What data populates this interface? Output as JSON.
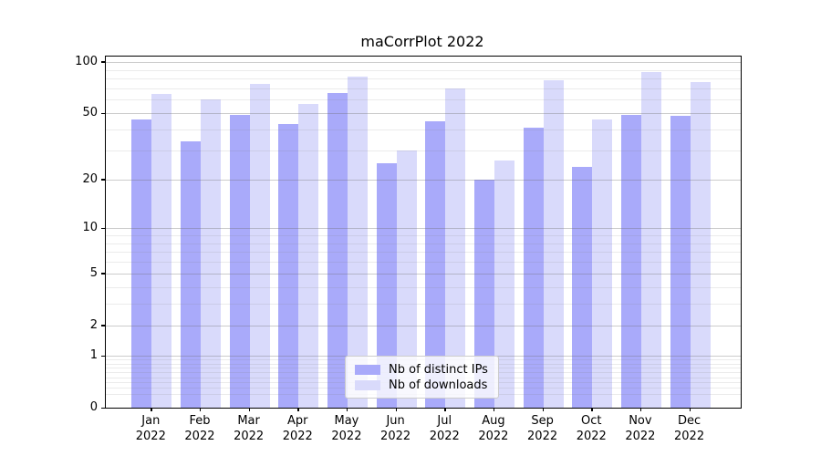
{
  "title": "maCorrPlot 2022",
  "chart_data": {
    "type": "bar",
    "title": "maCorrPlot 2022",
    "scale": "log1p",
    "categories": [
      "Jan",
      "Feb",
      "Mar",
      "Apr",
      "May",
      "Jun",
      "Jul",
      "Aug",
      "Sep",
      "Oct",
      "Nov",
      "Dec"
    ],
    "category_year": "2022",
    "series": [
      {
        "name": "Nb of distinct IPs",
        "color": "#a9aafa",
        "values": [
          46,
          34,
          49,
          43,
          66,
          25,
          45,
          20,
          41,
          24,
          49,
          48
        ]
      },
      {
        "name": "Nb of downloads",
        "color": "#d9dafb",
        "values": [
          65,
          60,
          74,
          57,
          82,
          30,
          70,
          26,
          78,
          46,
          87,
          76
        ]
      }
    ],
    "yticks": [
      0,
      1,
      2,
      5,
      10,
      20,
      50,
      100
    ],
    "minor_yticks": [
      0.2,
      0.3,
      0.4,
      0.5,
      0.6,
      0.7,
      0.8,
      0.9,
      3,
      4,
      6,
      7,
      8,
      9,
      30,
      40,
      60,
      70,
      80,
      90
    ],
    "ylim": [
      0,
      107
    ],
    "grid": "major+minor",
    "legend_position": "lower center",
    "xlabel": "",
    "ylabel": ""
  },
  "colors": {
    "bar_distinct_ips": "#a9aafa",
    "bar_downloads": "#d9dafb",
    "grid_major": "rgba(110,110,110,0.35)",
    "grid_minor": "rgba(130,130,130,0.16)",
    "axis": "#000000",
    "background": "#ffffff",
    "legend_border": "#cccccc"
  }
}
